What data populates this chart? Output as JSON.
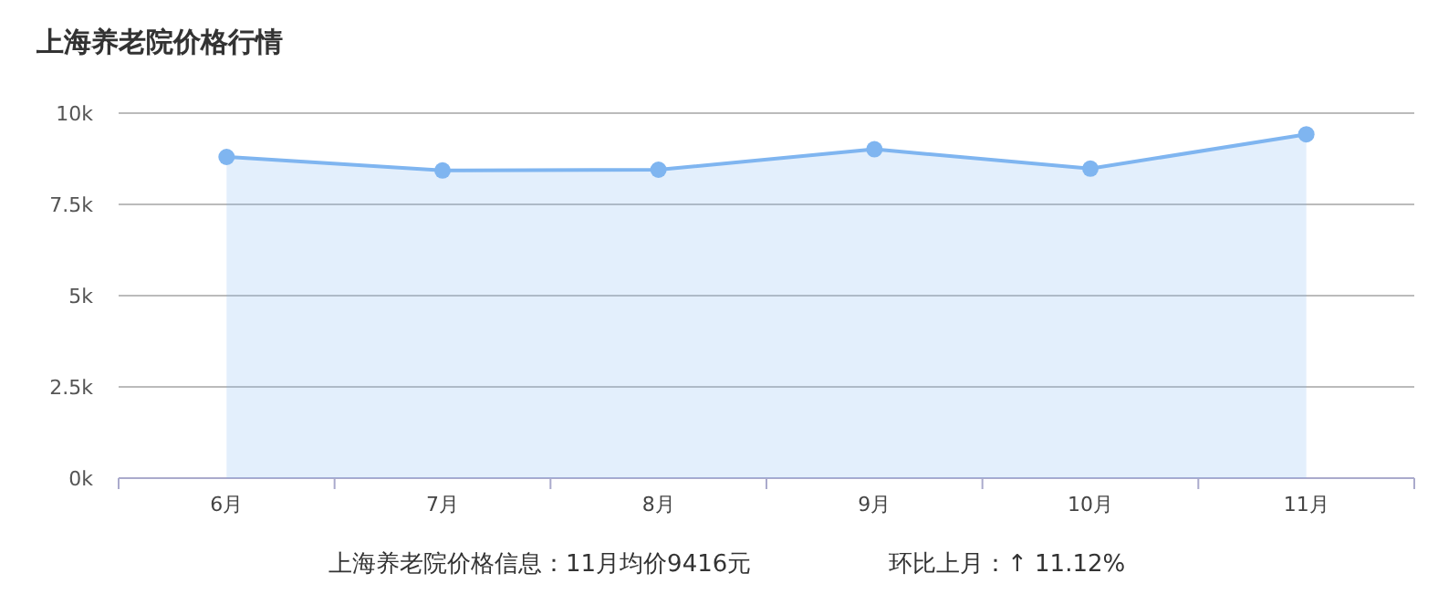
{
  "chart_data": {
    "type": "area",
    "title": "上海养老院价格行情",
    "categories": [
      "6月",
      "7月",
      "8月",
      "9月",
      "10月",
      "11月"
    ],
    "series": [
      {
        "color": "#7fb5f0",
        "values": [
          8800,
          8430,
          8450,
          9010,
          8480,
          9420
        ]
      }
    ],
    "ylim": [
      0,
      10000
    ],
    "yticks": [
      {
        "value": 0,
        "label": "0k"
      },
      {
        "value": 2500,
        "label": "2.5k"
      },
      {
        "value": 5000,
        "label": "5k"
      },
      {
        "value": 7500,
        "label": "7.5k"
      },
      {
        "value": 10000,
        "label": "10k"
      }
    ],
    "grid": "y",
    "marker": "circle",
    "annotations": [
      "上海养老院价格信息：11月均价9416元",
      "环比上月：↑ 11.12%"
    ]
  }
}
